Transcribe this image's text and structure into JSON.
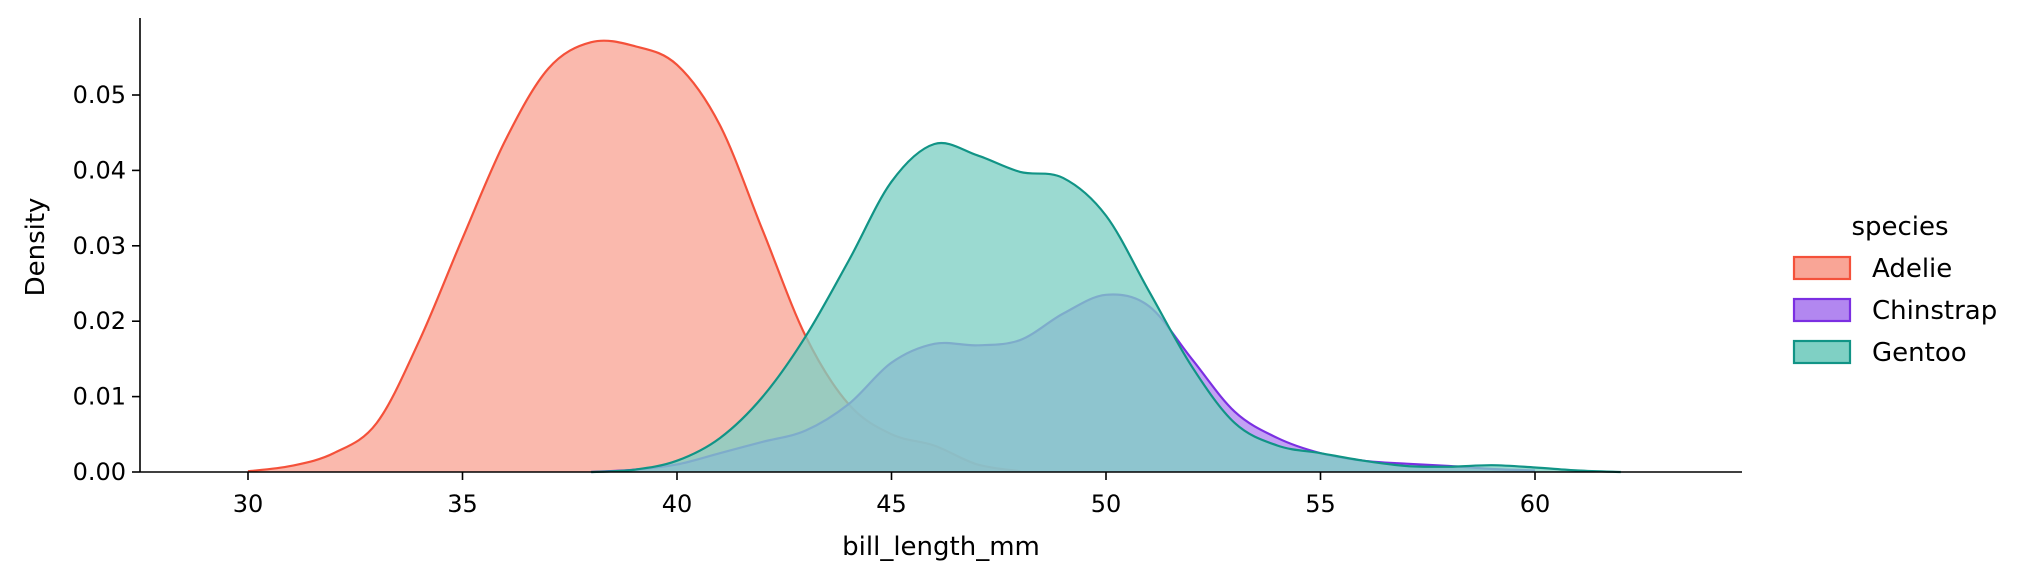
{
  "chart_data": {
    "type": "area",
    "subtype": "kde",
    "xlabel": "bill_length_mm",
    "ylabel": "Density",
    "xlim": [
      27.5,
      64.5
    ],
    "ylim": [
      0,
      0.06
    ],
    "xticks": [
      30,
      35,
      40,
      45,
      50,
      55,
      60
    ],
    "yticks": [
      0.0,
      0.01,
      0.02,
      0.03,
      0.04,
      0.05
    ],
    "ytick_labels": [
      "0.00",
      "0.01",
      "0.02",
      "0.03",
      "0.04",
      "0.05"
    ],
    "grid": false,
    "legend": {
      "title": "species",
      "placement": "right"
    },
    "series": [
      {
        "name": "Adelie",
        "color": "#f4513a",
        "fill": "#f9a596",
        "x": [
          30,
          31,
          32,
          33,
          34,
          35,
          36,
          37,
          38,
          39,
          40,
          41,
          42,
          43,
          44,
          45,
          46,
          47,
          48
        ],
        "y": [
          0.0001,
          0.0008,
          0.0025,
          0.0065,
          0.0175,
          0.031,
          0.044,
          0.0535,
          0.057,
          0.0565,
          0.054,
          0.046,
          0.032,
          0.018,
          0.009,
          0.005,
          0.0035,
          0.001,
          0.0001
        ]
      },
      {
        "name": "Chinstrap",
        "color": "#7b2fe2",
        "fill": "#b287f0",
        "x": [
          38,
          39,
          40,
          41,
          42,
          43,
          44,
          45,
          46,
          47,
          48,
          49,
          50,
          51,
          52,
          53,
          54,
          55,
          56,
          57,
          58,
          59,
          60
        ],
        "y": [
          0.0,
          0.0003,
          0.001,
          0.0025,
          0.004,
          0.0055,
          0.009,
          0.0145,
          0.017,
          0.0168,
          0.0175,
          0.021,
          0.0235,
          0.022,
          0.015,
          0.008,
          0.0045,
          0.0025,
          0.0015,
          0.0011,
          0.0008,
          0.0004,
          0.0002
        ]
      },
      {
        "name": "Gentoo",
        "color": "#119486",
        "fill": "#7fd0c4",
        "x": [
          38,
          39,
          40,
          41,
          42,
          43,
          44,
          45,
          46,
          47,
          48,
          49,
          50,
          51,
          52,
          53,
          54,
          55,
          56,
          57,
          58,
          59,
          60,
          61,
          62
        ],
        "y": [
          0.0,
          0.0003,
          0.0015,
          0.0045,
          0.01,
          0.018,
          0.028,
          0.0385,
          0.0435,
          0.042,
          0.0398,
          0.039,
          0.034,
          0.024,
          0.014,
          0.0065,
          0.0035,
          0.0025,
          0.0015,
          0.0008,
          0.0007,
          0.0009,
          0.0006,
          0.0002,
          0.0
        ]
      }
    ]
  }
}
